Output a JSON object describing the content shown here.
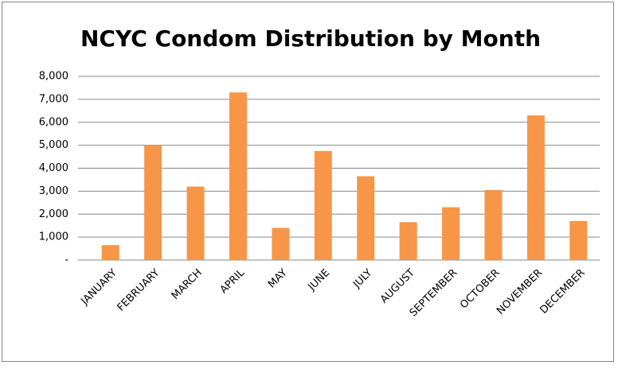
{
  "chart_data": {
    "type": "bar",
    "title": "NCYC Condom Distribution by Month",
    "categories": [
      "JANUARY",
      "FEBRUARY",
      "MARCH",
      "APRIL",
      "MAY",
      "JUNE",
      "JULY",
      "AUGUST",
      "SEPTEMBER",
      "OCTOBER",
      "NOVEMBER",
      "DECEMBER"
    ],
    "values": [
      650,
      5000,
      3200,
      7300,
      1400,
      4750,
      3650,
      1650,
      2300,
      3050,
      6300,
      1700
    ],
    "color": "#f79646",
    "ylim": [
      0,
      8000
    ],
    "yticks": [
      {
        "value": 0,
        "label": "-"
      },
      {
        "value": 1000,
        "label": "1,000"
      },
      {
        "value": 2000,
        "label": "2,000"
      },
      {
        "value": 3000,
        "label": "3,000"
      },
      {
        "value": 4000,
        "label": "4,000"
      },
      {
        "value": 5000,
        "label": "5,000"
      },
      {
        "value": 6000,
        "label": "6,000"
      },
      {
        "value": 7000,
        "label": "7,000"
      },
      {
        "value": 8000,
        "label": "8,000"
      }
    ],
    "grid": true
  }
}
